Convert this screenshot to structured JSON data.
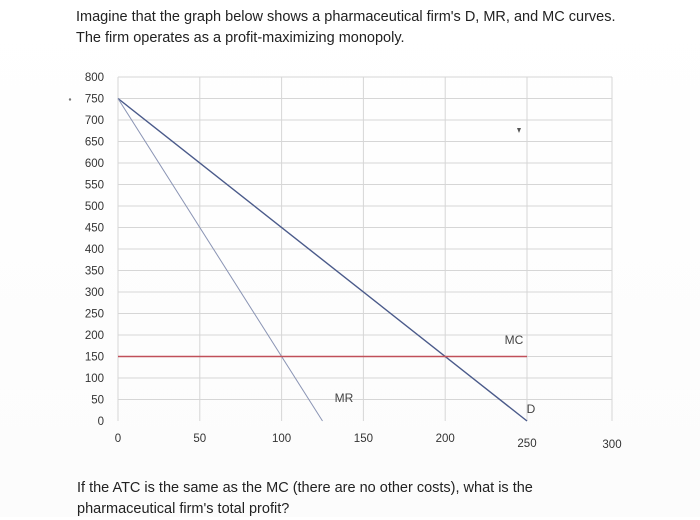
{
  "question": {
    "line1": "Imagine that the graph below shows a pharmaceutical firm's D, MR, and MC curves.",
    "line2": "The firm operates as a profit-maximizing monopoly.",
    "bottom_line1": "If the ATC is the same as the MC (there are no other costs), what is the",
    "bottom_line2": "pharmaceutical firm's total profit?"
  },
  "chart_data": {
    "type": "line",
    "title": "",
    "xlabel": "",
    "ylabel": "",
    "xlim": [
      0,
      250
    ],
    "ylim": [
      0,
      800
    ],
    "x_ticks": [
      "0",
      "50",
      "100",
      "150",
      "200",
      "250",
      "300"
    ],
    "y_ticks": [
      "800",
      "750",
      "700",
      "650",
      "600",
      "550",
      "500",
      "450",
      "400",
      "350",
      "300",
      "250",
      "200",
      "150",
      "100",
      "50",
      "0"
    ],
    "grid": true,
    "series": [
      {
        "name": "D",
        "x": [
          0,
          250
        ],
        "y": [
          750,
          0
        ],
        "color": "#4a5a8a"
      },
      {
        "name": "MR",
        "x": [
          0,
          125
        ],
        "y": [
          750,
          0
        ],
        "color": "#8a94b4"
      },
      {
        "name": "MC",
        "x": [
          0,
          250
        ],
        "y": [
          150,
          150
        ],
        "color": "#c0505a"
      }
    ]
  }
}
